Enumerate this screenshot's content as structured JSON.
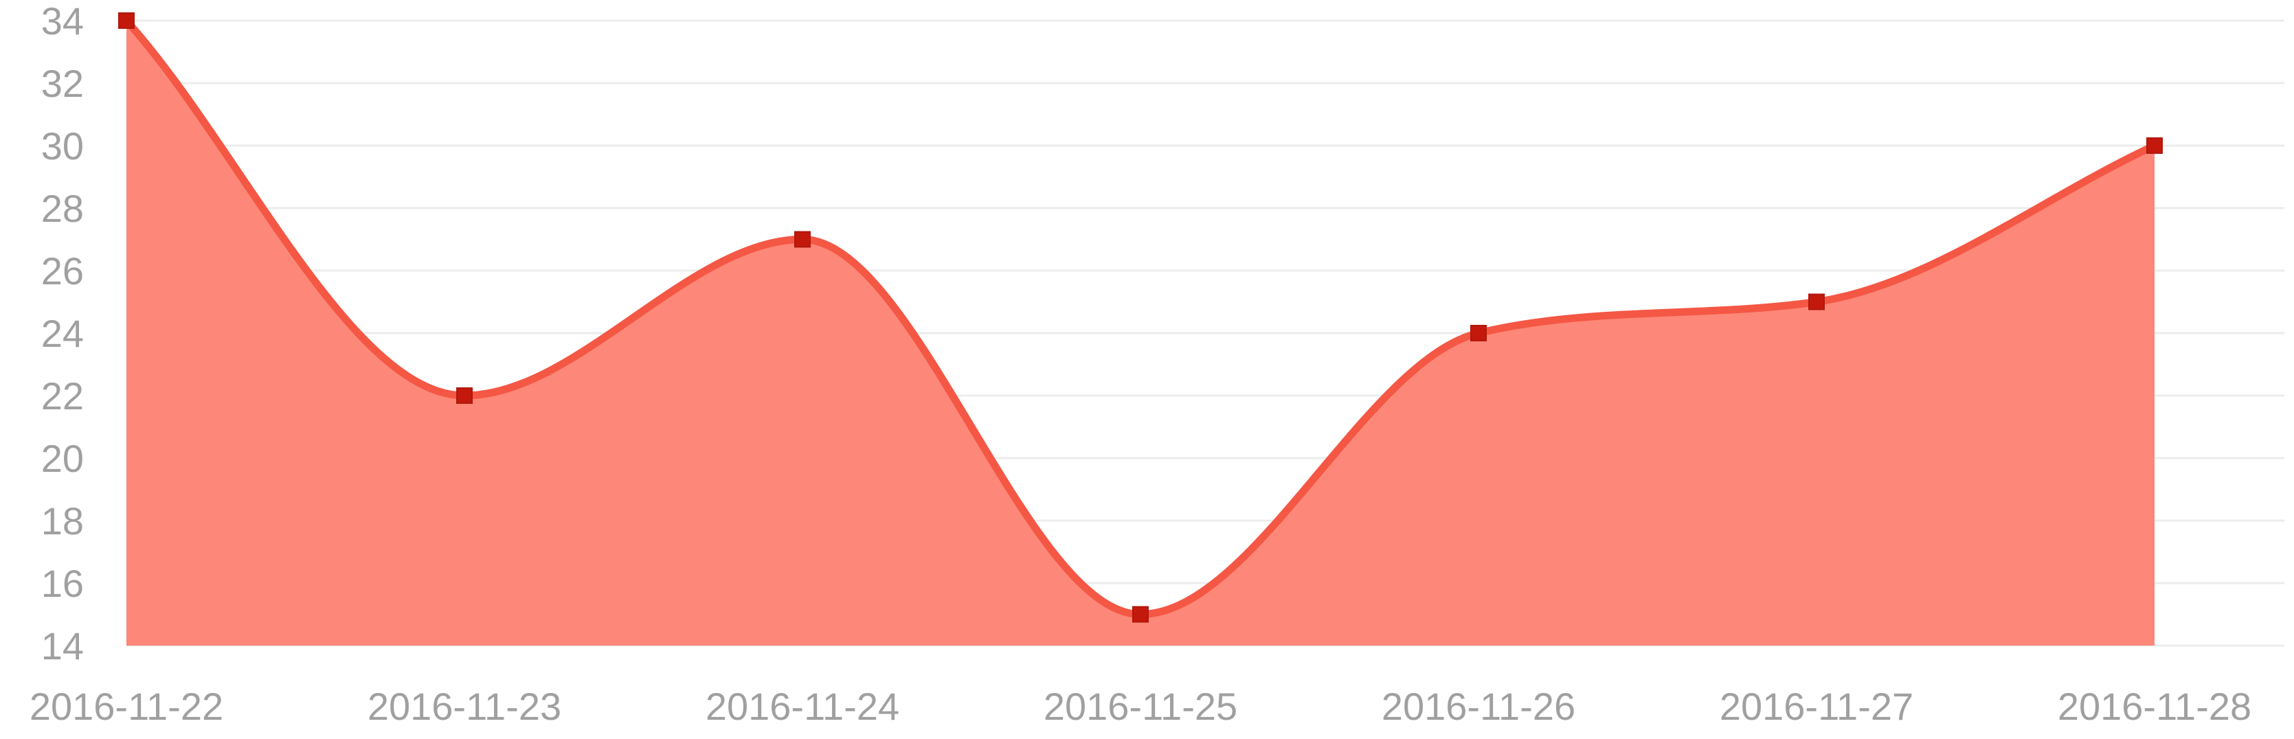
{
  "chart_data": {
    "type": "area",
    "title": "",
    "xlabel": "",
    "ylabel": "",
    "categories": [
      "2016-11-22",
      "2016-11-23",
      "2016-11-24",
      "2016-11-25",
      "2016-11-26",
      "2016-11-27",
      "2016-11-28"
    ],
    "series": [
      {
        "values": [
          34,
          22,
          27,
          15,
          24,
          25,
          30
        ]
      }
    ],
    "ylim": [
      14,
      34
    ],
    "yticks": [
      14,
      16,
      18,
      20,
      22,
      24,
      26,
      28,
      30,
      32,
      34
    ],
    "ytick_labels": [
      "14",
      "16",
      "18",
      "20",
      "22",
      "24",
      "26",
      "28",
      "30",
      "32",
      "34"
    ],
    "grid": true,
    "legend": "none",
    "colors": {
      "fill": "#fd8778",
      "line": "#f45744",
      "point": "#c3190c",
      "grid": "#ececec",
      "axis_text": "#a0a0a0"
    }
  }
}
